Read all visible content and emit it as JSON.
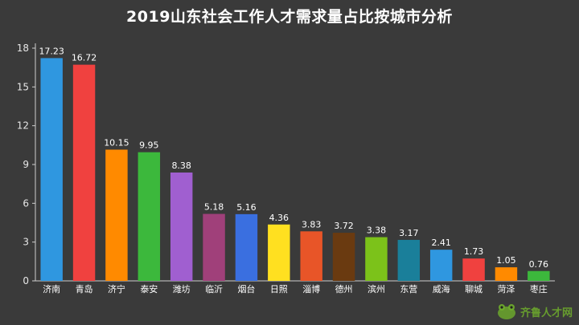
{
  "title": "2019山东社会工作人才需求量占比按城市分析",
  "watermark": {
    "brand": "齐鲁人才网",
    "sub": "网"
  },
  "chart_data": {
    "type": "bar",
    "title": "2019山东社会工作人才需求量占比按城市分析",
    "xlabel": "",
    "ylabel": "",
    "ylim": [
      0,
      18
    ],
    "yticks": [
      0,
      3,
      6,
      9,
      12,
      15,
      18
    ],
    "grid": false,
    "categories": [
      "济南",
      "青岛",
      "济宁",
      "泰安",
      "潍坊",
      "临沂",
      "烟台",
      "日照",
      "淄博",
      "德州",
      "滨州",
      "东营",
      "威海",
      "聊城",
      "菏泽",
      "枣庄"
    ],
    "values": [
      17.23,
      16.72,
      10.15,
      9.95,
      8.38,
      5.18,
      5.16,
      4.36,
      3.83,
      3.72,
      3.38,
      3.17,
      2.41,
      1.73,
      1.05,
      0.76
    ],
    "value_labels": [
      "17.23",
      "16.72",
      "10.15",
      "9.95",
      "8.38",
      "5.18",
      "5.16",
      "4.36",
      "3.83",
      "3.72",
      "3.38",
      "3.17",
      "2.41",
      "1.73",
      "1.05",
      "0.76"
    ],
    "colors": [
      "#2f97e0",
      "#f0413f",
      "#ff8a00",
      "#3cb83c",
      "#a05fd0",
      "#a0407a",
      "#3a6fe0",
      "#ffe020",
      "#e85528",
      "#6a3a10",
      "#7cc21a",
      "#1a7f9a",
      "#2f97e0",
      "#f0413f",
      "#ff8a00",
      "#3cb83c"
    ]
  }
}
